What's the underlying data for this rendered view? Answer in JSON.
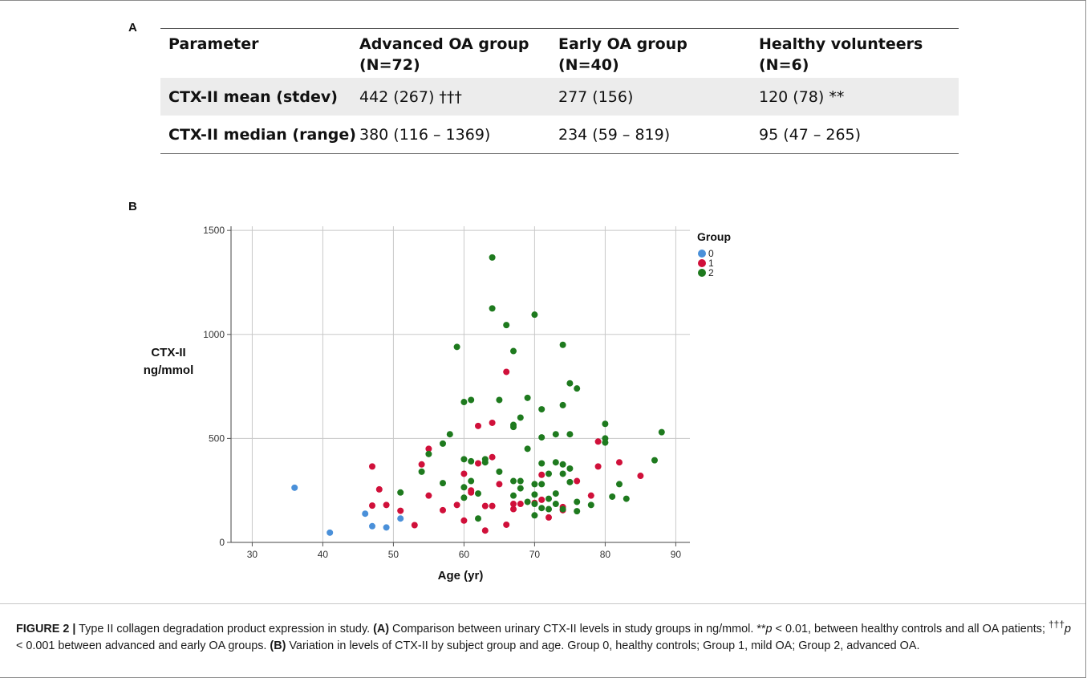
{
  "panel_a_label": "A",
  "panel_b_label": "B",
  "table": {
    "headers": [
      {
        "line1": "Parameter",
        "line2": ""
      },
      {
        "line1": "Advanced OA group",
        "line2": "(N=72)"
      },
      {
        "line1": "Early OA group",
        "line2": "(N=40)"
      },
      {
        "line1": "Healthy volunteers",
        "line2": "(N=6)"
      }
    ],
    "rows": [
      {
        "label": "CTX-II mean (stdev)",
        "values": [
          "442 (267) †††",
          "277 (156)",
          "120 (78) **"
        ]
      },
      {
        "label": "CTX-II median (range)",
        "values": [
          "380 (116 – 1369)",
          "234 (59 – 819)",
          "95 (47 – 265)"
        ]
      }
    ]
  },
  "chart_data": {
    "type": "scatter",
    "xlabel": "Age (yr)",
    "ylabel_lines": [
      "CTX-II",
      "ng/mmol"
    ],
    "xlim": [
      27,
      92
    ],
    "ylim": [
      0,
      1520
    ],
    "xticks": [
      30,
      40,
      50,
      60,
      70,
      80,
      90
    ],
    "yticks": [
      0,
      500,
      1000,
      1500
    ],
    "grid": true,
    "legend": {
      "title": "Group",
      "placement": "right",
      "entries": [
        "0",
        "1",
        "2"
      ]
    },
    "series": [
      {
        "name": "0",
        "color": "#4a90d9",
        "points": [
          [
            36,
            263
          ],
          [
            41,
            47
          ],
          [
            46,
            138
          ],
          [
            47,
            78
          ],
          [
            49,
            72
          ],
          [
            51,
            115
          ]
        ]
      },
      {
        "name": "1",
        "color": "#d0103a",
        "points": [
          [
            47,
            365
          ],
          [
            47,
            177
          ],
          [
            48,
            255
          ],
          [
            49,
            180
          ],
          [
            51,
            152
          ],
          [
            53,
            83
          ],
          [
            54,
            375
          ],
          [
            55,
            450
          ],
          [
            55,
            225
          ],
          [
            57,
            155
          ],
          [
            59,
            180
          ],
          [
            60,
            330
          ],
          [
            60,
            105
          ],
          [
            61,
            250
          ],
          [
            61,
            240
          ],
          [
            62,
            560
          ],
          [
            62,
            380
          ],
          [
            63,
            175
          ],
          [
            63,
            57
          ],
          [
            64,
            575
          ],
          [
            64,
            410
          ],
          [
            64,
            175
          ],
          [
            65,
            280
          ],
          [
            66,
            820
          ],
          [
            66,
            85
          ],
          [
            67,
            185
          ],
          [
            67,
            160
          ],
          [
            68,
            185
          ],
          [
            70,
            190
          ],
          [
            71,
            325
          ],
          [
            71,
            205
          ],
          [
            72,
            120
          ],
          [
            74,
            170
          ],
          [
            74,
            155
          ],
          [
            76,
            295
          ],
          [
            78,
            225
          ],
          [
            79,
            485
          ],
          [
            79,
            365
          ],
          [
            82,
            385
          ],
          [
            85,
            320
          ]
        ]
      },
      {
        "name": "2",
        "color": "#1e7a1e",
        "points": [
          [
            51,
            240
          ],
          [
            54,
            340
          ],
          [
            55,
            425
          ],
          [
            57,
            475
          ],
          [
            57,
            285
          ],
          [
            58,
            520
          ],
          [
            59,
            940
          ],
          [
            60,
            675
          ],
          [
            60,
            400
          ],
          [
            60,
            265
          ],
          [
            60,
            215
          ],
          [
            61,
            685
          ],
          [
            61,
            390
          ],
          [
            61,
            295
          ],
          [
            62,
            235
          ],
          [
            62,
            115
          ],
          [
            63,
            400
          ],
          [
            63,
            385
          ],
          [
            64,
            1370
          ],
          [
            64,
            1125
          ],
          [
            65,
            685
          ],
          [
            65,
            340
          ],
          [
            66,
            1045
          ],
          [
            67,
            920
          ],
          [
            67,
            565
          ],
          [
            67,
            555
          ],
          [
            67,
            295
          ],
          [
            67,
            225
          ],
          [
            68,
            600
          ],
          [
            68,
            295
          ],
          [
            68,
            260
          ],
          [
            69,
            695
          ],
          [
            69,
            450
          ],
          [
            69,
            195
          ],
          [
            70,
            1095
          ],
          [
            70,
            280
          ],
          [
            70,
            230
          ],
          [
            70,
            185
          ],
          [
            70,
            130
          ],
          [
            71,
            640
          ],
          [
            71,
            505
          ],
          [
            71,
            380
          ],
          [
            71,
            280
          ],
          [
            71,
            165
          ],
          [
            72,
            330
          ],
          [
            72,
            210
          ],
          [
            72,
            160
          ],
          [
            73,
            520
          ],
          [
            73,
            385
          ],
          [
            73,
            235
          ],
          [
            73,
            185
          ],
          [
            74,
            950
          ],
          [
            74,
            660
          ],
          [
            74,
            375
          ],
          [
            74,
            330
          ],
          [
            74,
            160
          ],
          [
            75,
            765
          ],
          [
            75,
            520
          ],
          [
            75,
            355
          ],
          [
            75,
            290
          ],
          [
            76,
            740
          ],
          [
            76,
            195
          ],
          [
            76,
            150
          ],
          [
            78,
            180
          ],
          [
            80,
            570
          ],
          [
            80,
            500
          ],
          [
            80,
            480
          ],
          [
            81,
            220
          ],
          [
            82,
            280
          ],
          [
            83,
            210
          ],
          [
            87,
            395
          ],
          [
            88,
            530
          ]
        ]
      }
    ]
  },
  "caption": {
    "fig": "FIGURE 2 |",
    "t1": " Type II collagen degradation product expression in study. ",
    "a": "(A)",
    "t2": " Comparison between urinary CTX-II levels in study groups in ng/mmol. **",
    "p1": "p",
    "t3": " < 0.01, between healthy controls and all OA patients; ",
    "dag": "†††",
    "p2": "p",
    "t4": " < 0.001 between advanced and early OA groups. ",
    "b": "(B)",
    "t5": " Variation in levels of CTX-II by subject group and age. Group 0, healthy controls; Group 1, mild OA; Group 2, advanced OA."
  }
}
